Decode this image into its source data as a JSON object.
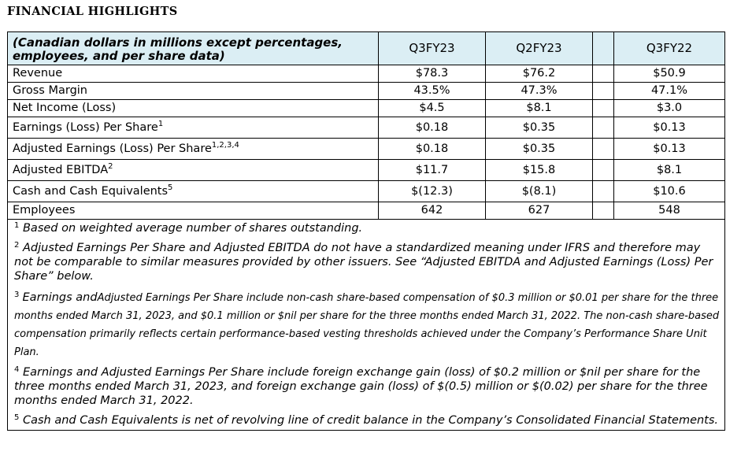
{
  "title": "FINANCIAL HIGHLIGHTS",
  "table": {
    "caption": "(Canadian dollars in millions except percentages, employees, and per share data)",
    "columns": [
      "Q3FY23",
      "Q2FY23",
      "Q3FY22"
    ],
    "rows": [
      {
        "label": "Revenue",
        "sup": "",
        "values": [
          "$78.3",
          "$76.2",
          "$50.9"
        ]
      },
      {
        "label": "Gross Margin",
        "sup": "",
        "values": [
          "43.5%",
          "47.3%",
          "47.1%"
        ]
      },
      {
        "label": "Net Income (Loss)",
        "sup": "",
        "values": [
          "$4.5",
          "$8.1",
          "$3.0"
        ]
      },
      {
        "label": "Earnings (Loss) Per Share",
        "sup": "1",
        "values": [
          "$0.18",
          "$0.35",
          "$0.13"
        ]
      },
      {
        "label": "Adjusted Earnings (Loss) Per Share",
        "sup": "1,2,3,4",
        "values": [
          "$0.18",
          "$0.35",
          "$0.13"
        ]
      },
      {
        "label": "Adjusted EBITDA",
        "sup": "2",
        "values": [
          "$11.7",
          "$15.8",
          "$8.1"
        ]
      },
      {
        "label": "Cash and Cash Equivalents",
        "sup": "5",
        "values": [
          "$(12.3)",
          "$(8.1)",
          "$10.6"
        ]
      },
      {
        "label": "Employees",
        "sup": "",
        "values": [
          "642",
          "627",
          "548"
        ]
      }
    ]
  },
  "footnotes": [
    {
      "num": "1",
      "text": "Based on weighted average number of shares outstanding."
    },
    {
      "num": "2",
      "text": "Adjusted Earnings Per Share and Adjusted EBITDA do not have a standardized meaning under IFRS and therefore may not be comparable to similar measures provided by other issuers. See “Adjusted EBITDA and Adjusted Earnings (Loss) Per Share” below."
    },
    {
      "num": "3",
      "lead": "Earnings and",
      "text": "Adjusted Earnings Per Share include non-cash share-based compensation of $0.3 million or $0.01 per share for the three months ended March 31, 2023, and $0.1 million or $nil per share for the three months ended March 31, 2022. The non-cash share-based compensation primarily reflects certain performance-based vesting thresholds achieved under the Company’s Performance Share Unit Plan."
    },
    {
      "num": "4",
      "text": "Earnings and Adjusted Earnings Per Share include foreign exchange gain (loss) of $0.2 million or $nil per share for the three months ended March 31, 2023, and foreign exchange gain (loss) of $(0.5) million or $(0.02) per share for the three months ended March 31, 2022."
    },
    {
      "num": "5",
      "text": "Cash and Cash Equivalents is net of revolving line of credit balance in the Company’s Consolidated Financial Statements."
    }
  ]
}
